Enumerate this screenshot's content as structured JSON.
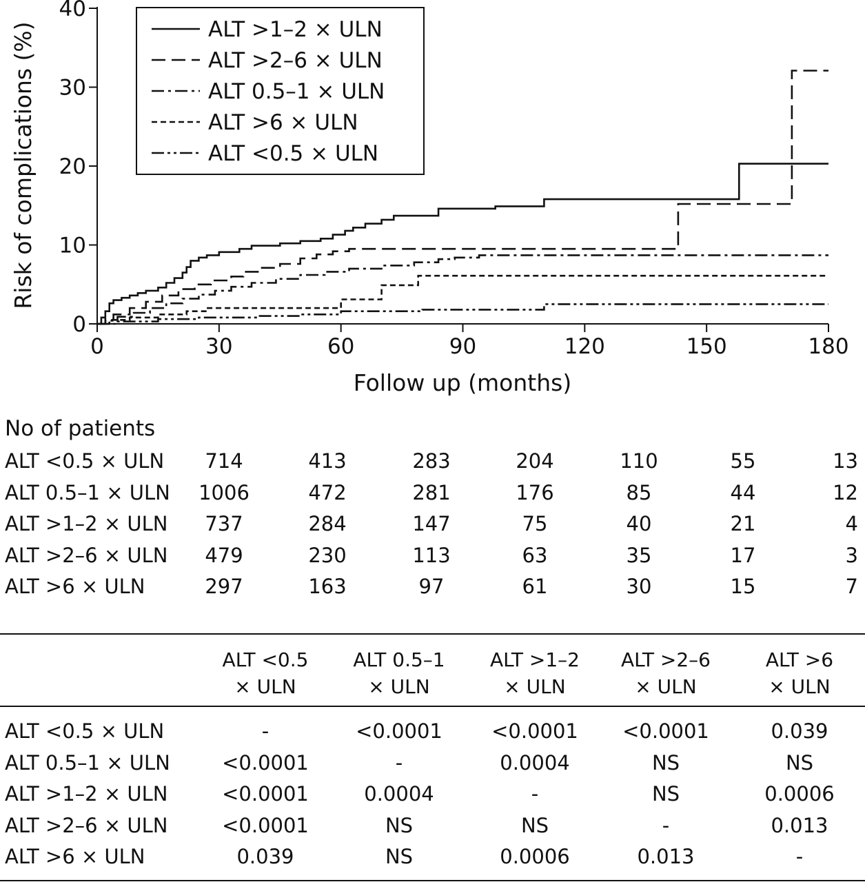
{
  "chart_data": {
    "type": "line",
    "step": true,
    "xlabel": "Follow up (months)",
    "ylabel": "Risk of complications (%)",
    "xlim": [
      0,
      180
    ],
    "ylim": [
      0,
      40
    ],
    "xticks": [
      0,
      30,
      60,
      90,
      120,
      150,
      180
    ],
    "yticks": [
      0,
      10,
      20,
      30,
      40
    ],
    "grid": false,
    "legend_position": "top-left",
    "series": [
      {
        "name": "ALT >1–2 × ULN",
        "dash": "solid",
        "points": [
          [
            0,
            0
          ],
          [
            1,
            0.8
          ],
          [
            2,
            1.6
          ],
          [
            3,
            2.6
          ],
          [
            4,
            3.0
          ],
          [
            6,
            3.3
          ],
          [
            8,
            3.6
          ],
          [
            10,
            3.9
          ],
          [
            12,
            4.2
          ],
          [
            15,
            4.6
          ],
          [
            17,
            5.2
          ],
          [
            19,
            5.8
          ],
          [
            21,
            6.5
          ],
          [
            22,
            7.2
          ],
          [
            23,
            8.0
          ],
          [
            25,
            8.4
          ],
          [
            27,
            8.7
          ],
          [
            30,
            9.1
          ],
          [
            35,
            9.5
          ],
          [
            38,
            9.9
          ],
          [
            45,
            10.2
          ],
          [
            50,
            10.5
          ],
          [
            55,
            10.8
          ],
          [
            58,
            11.3
          ],
          [
            61,
            11.8
          ],
          [
            63,
            12.2
          ],
          [
            66,
            12.7
          ],
          [
            70,
            13.2
          ],
          [
            73,
            13.7
          ],
          [
            84,
            14.6
          ],
          [
            98,
            14.9
          ],
          [
            110,
            15.8
          ],
          [
            158,
            15.9
          ],
          [
            158,
            20.3
          ],
          [
            180,
            20.3
          ]
        ]
      },
      {
        "name": "ALT >2–6 × ULN",
        "dash": "long-dash",
        "points": [
          [
            0,
            0
          ],
          [
            2,
            0.6
          ],
          [
            4,
            1.2
          ],
          [
            8,
            2.0
          ],
          [
            12,
            2.8
          ],
          [
            16,
            3.6
          ],
          [
            20,
            4.4
          ],
          [
            24,
            5.0
          ],
          [
            28,
            5.5
          ],
          [
            33,
            6.0
          ],
          [
            36,
            6.6
          ],
          [
            40,
            7.1
          ],
          [
            45,
            7.6
          ],
          [
            50,
            8.3
          ],
          [
            54,
            8.8
          ],
          [
            58,
            9.2
          ],
          [
            62,
            9.5
          ],
          [
            143,
            9.5
          ],
          [
            143,
            15.2
          ],
          [
            171,
            15.2
          ],
          [
            171,
            32.1
          ],
          [
            180,
            32.1
          ]
        ]
      },
      {
        "name": "ALT 0.5–1 × ULN",
        "dash": "dash-dot",
        "points": [
          [
            0,
            0
          ],
          [
            2,
            0.4
          ],
          [
            5,
            0.9
          ],
          [
            9,
            1.4
          ],
          [
            13,
            2.0
          ],
          [
            17,
            2.6
          ],
          [
            21,
            3.2
          ],
          [
            25,
            3.7
          ],
          [
            29,
            4.2
          ],
          [
            33,
            4.7
          ],
          [
            38,
            5.2
          ],
          [
            44,
            5.7
          ],
          [
            50,
            6.2
          ],
          [
            56,
            6.6
          ],
          [
            62,
            7.0
          ],
          [
            70,
            7.4
          ],
          [
            78,
            7.8
          ],
          [
            84,
            8.2
          ],
          [
            88,
            8.4
          ],
          [
            94,
            8.7
          ],
          [
            180,
            8.7
          ]
        ]
      },
      {
        "name": "ALT >6 × ULN",
        "dash": "short-dash",
        "points": [
          [
            0,
            0
          ],
          [
            3,
            0.5
          ],
          [
            8,
            0.8
          ],
          [
            15,
            1.2
          ],
          [
            22,
            1.6
          ],
          [
            27,
            2.0
          ],
          [
            60,
            2.0
          ],
          [
            60,
            3.1
          ],
          [
            70,
            3.8
          ],
          [
            70,
            4.9
          ],
          [
            79,
            4.9
          ],
          [
            79,
            6.1
          ],
          [
            180,
            6.1
          ]
        ]
      },
      {
        "name": "ALT <0.5 × ULN",
        "dash": "dash-dot-dot",
        "points": [
          [
            0,
            0
          ],
          [
            5,
            0.3
          ],
          [
            15,
            0.6
          ],
          [
            25,
            0.8
          ],
          [
            40,
            1.0
          ],
          [
            50,
            1.2
          ],
          [
            60,
            1.6
          ],
          [
            80,
            1.8
          ],
          [
            110,
            1.9
          ],
          [
            110,
            2.5
          ],
          [
            180,
            2.5
          ]
        ]
      }
    ]
  },
  "patients_at_risk": {
    "title": "No of patients",
    "rows": [
      {
        "label": "ALT <0.5 × ULN",
        "values": [
          "714",
          "413",
          "283",
          "204",
          "110",
          "55",
          "13"
        ]
      },
      {
        "label": "ALT 0.5–1 × ULN",
        "values": [
          "1006",
          "472",
          "281",
          "176",
          "85",
          "44",
          "12"
        ]
      },
      {
        "label": "ALT >1–2 × ULN",
        "values": [
          "737",
          "284",
          "147",
          "75",
          "40",
          "21",
          "4"
        ]
      },
      {
        "label": "ALT >2–6 × ULN",
        "values": [
          "479",
          "230",
          "113",
          "63",
          "35",
          "17",
          "3"
        ]
      },
      {
        "label": "ALT >6 × ULN",
        "values": [
          "297",
          "163",
          "97",
          "61",
          "30",
          "15",
          "7"
        ]
      }
    ]
  },
  "pvalue_table": {
    "columns": [
      [
        "ALT <0.5",
        "× ULN"
      ],
      [
        "ALT 0.5–1",
        "× ULN"
      ],
      [
        "ALT >1–2",
        "× ULN"
      ],
      [
        "ALT >2–6",
        "× ULN"
      ],
      [
        "ALT >6",
        "× ULN"
      ]
    ],
    "rows": [
      {
        "label": "ALT <0.5 × ULN",
        "values": [
          "-",
          "<0.0001",
          "<0.0001",
          "<0.0001",
          "0.039"
        ]
      },
      {
        "label": "ALT 0.5–1 × ULN",
        "values": [
          "<0.0001",
          "-",
          "0.0004",
          "NS",
          "NS"
        ]
      },
      {
        "label": "ALT >1–2 × ULN",
        "values": [
          "<0.0001",
          "0.0004",
          "-",
          "NS",
          "0.0006"
        ]
      },
      {
        "label": "ALT >2–6 × ULN",
        "values": [
          "<0.0001",
          "NS",
          "NS",
          "-",
          "0.013"
        ]
      },
      {
        "label": "ALT >6 × ULN",
        "values": [
          "0.039",
          "NS",
          "0.0006",
          "0.013",
          "-"
        ]
      }
    ]
  }
}
